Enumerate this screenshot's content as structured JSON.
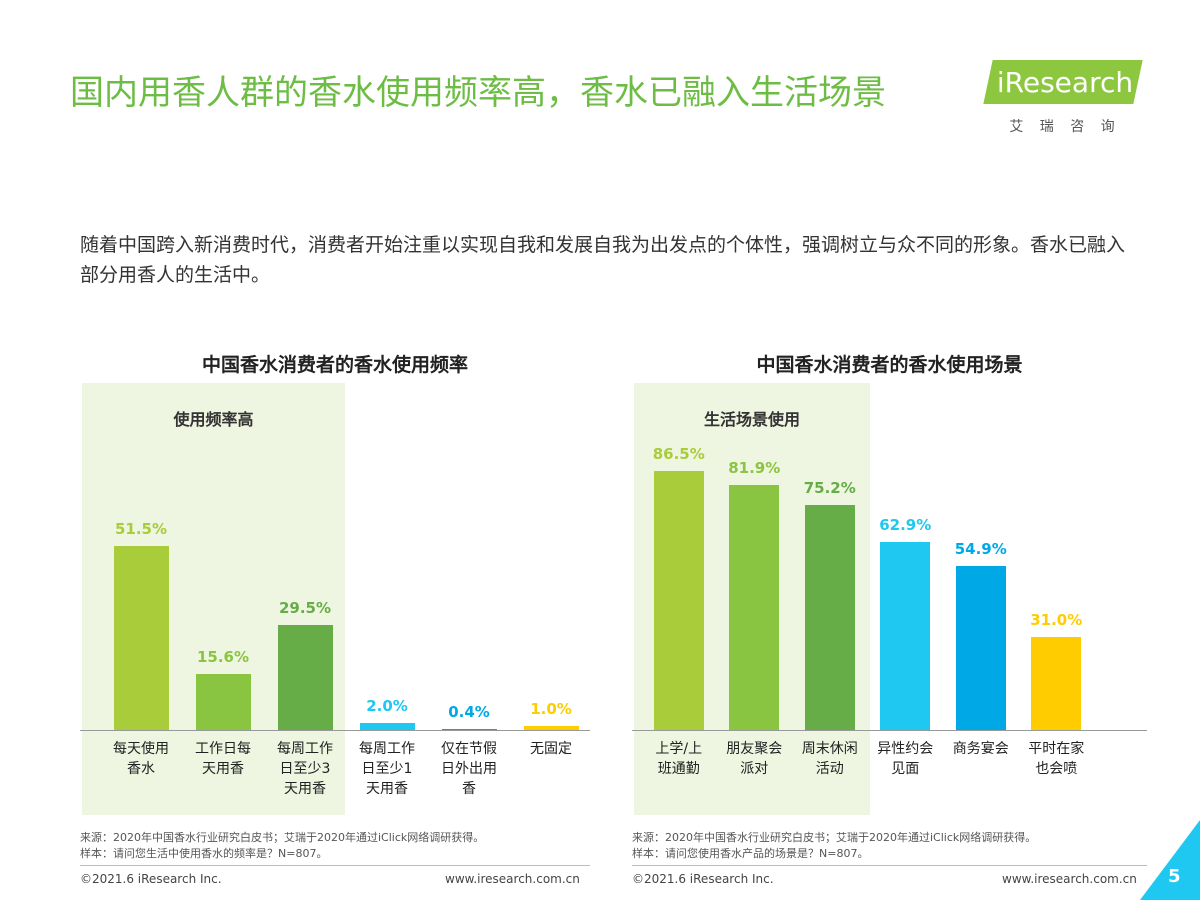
{
  "title": "国内用香人群的香水使用频率高，香水已融入生活场景",
  "logo": {
    "name": "iResearch",
    "tagline": "艾 瑞 咨 询"
  },
  "intro": "随着中国跨入新消费时代，消费者开始注重以实现自我和发展自我为出发点的个体性，强调树立与众不同的形象。香水已融入部分用香人的生活中。",
  "footer": {
    "copyright": "©2021.6 iResearch Inc.",
    "website": "www.iresearch.com.cn",
    "page": "5"
  },
  "chart_data": [
    {
      "type": "bar",
      "title": "中国香水消费者的香水使用频率",
      "highlight_label": "使用频率高",
      "categories": [
        "每天使用\n香水",
        "工作日每\n天用香",
        "每周工作\n日至少3\n天用香",
        "每周工作\n日至少1\n天用香",
        "仅在节假\n日外出用\n香",
        "无固定"
      ],
      "values": [
        51.5,
        15.6,
        29.5,
        2.0,
        0.4,
        1.0
      ],
      "value_labels": [
        "51.5%",
        "15.6%",
        "29.5%",
        "2.0%",
        "0.4%",
        "1.0%"
      ],
      "colors": [
        "#a9cc3a",
        "#8ac541",
        "#66ad47",
        "#1ec8f0",
        "#00a9e6",
        "#ffcc00"
      ],
      "source": "来源：2020年中国香水行业研究白皮书；艾瑞于2020年通过iClick网络调研获得。",
      "sample": "样本：请问您生活中使用香水的频率是？N=807。"
    },
    {
      "type": "bar",
      "title": "中国香水消费者的香水使用场景",
      "highlight_label": "生活场景使用",
      "categories": [
        "上学/上\n班通勤",
        "朋友聚会\n派对",
        "周末休闲\n活动",
        "异性约会\n见面",
        "商务宴会",
        "平时在家\n也会喷"
      ],
      "values": [
        86.5,
        81.9,
        75.2,
        62.9,
        54.9,
        31.0
      ],
      "value_labels": [
        "86.5%",
        "81.9%",
        "75.2%",
        "62.9%",
        "54.9%",
        "31.0%"
      ],
      "colors": [
        "#a9cc3a",
        "#8ac541",
        "#66ad47",
        "#1ec8f0",
        "#00a9e6",
        "#ffcc00"
      ],
      "source": "来源：2020年中国香水行业研究白皮书；艾瑞于2020年通过iClick网络调研获得。",
      "sample": "样本：请问您使用香水产品的场景是？N=807。"
    }
  ]
}
